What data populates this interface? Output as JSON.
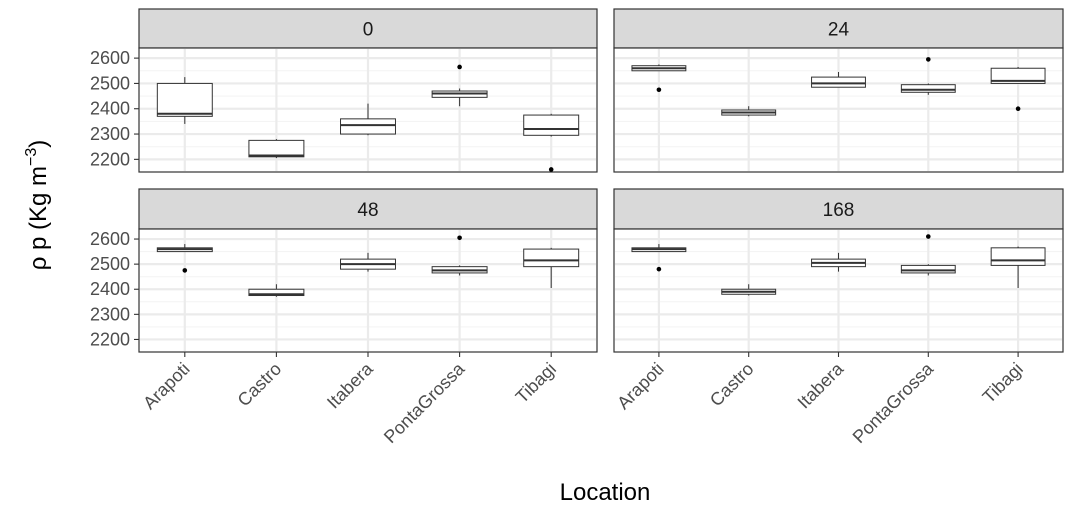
{
  "chart_data": {
    "type": "boxplot",
    "facet_variable": "time",
    "xlabel": "Location",
    "ylabel": "ρ p (Kg m",
    "ylabel_superscript": "−3",
    "ylabel_close": ")",
    "ylim": [
      2150,
      2640
    ],
    "yticks": [
      2200,
      2300,
      2400,
      2500,
      2600
    ],
    "grid": true,
    "categories": [
      "Arapoti",
      "Castro",
      "Itabera",
      "PontaGrossa",
      "Tibagi"
    ],
    "panels": [
      {
        "label": "0",
        "boxes": [
          {
            "category": "Arapoti",
            "lower": 2340,
            "q1": 2370,
            "median": 2380,
            "q3": 2500,
            "upper": 2525,
            "outliers": []
          },
          {
            "category": "Castro",
            "lower": 2205,
            "q1": 2210,
            "median": 2215,
            "q3": 2275,
            "upper": 2280,
            "outliers": []
          },
          {
            "category": "Itabera",
            "lower": 2295,
            "q1": 2300,
            "median": 2335,
            "q3": 2360,
            "upper": 2420,
            "outliers": []
          },
          {
            "category": "PontaGrossa",
            "lower": 2410,
            "q1": 2445,
            "median": 2460,
            "q3": 2470,
            "upper": 2480,
            "outliers": [
              2565
            ]
          },
          {
            "category": "Tibagi",
            "lower": 2290,
            "q1": 2295,
            "median": 2320,
            "q3": 2375,
            "upper": 2380,
            "outliers": [
              2160
            ]
          }
        ]
      },
      {
        "label": "24",
        "boxes": [
          {
            "category": "Arapoti",
            "lower": 2550,
            "q1": 2550,
            "median": 2560,
            "q3": 2570,
            "upper": 2575,
            "outliers": [
              2475
            ]
          },
          {
            "category": "Castro",
            "lower": 2370,
            "q1": 2375,
            "median": 2385,
            "q3": 2395,
            "upper": 2410,
            "outliers": []
          },
          {
            "category": "Itabera",
            "lower": 2485,
            "q1": 2485,
            "median": 2500,
            "q3": 2525,
            "upper": 2545,
            "outliers": []
          },
          {
            "category": "PontaGrossa",
            "lower": 2455,
            "q1": 2465,
            "median": 2475,
            "q3": 2495,
            "upper": 2500,
            "outliers": [
              2595
            ]
          },
          {
            "category": "Tibagi",
            "lower": 2500,
            "q1": 2500,
            "median": 2510,
            "q3": 2560,
            "upper": 2565,
            "outliers": [
              2400
            ]
          }
        ]
      },
      {
        "label": "48",
        "boxes": [
          {
            "category": "Arapoti",
            "lower": 2550,
            "q1": 2550,
            "median": 2560,
            "q3": 2565,
            "upper": 2580,
            "outliers": [
              2475
            ]
          },
          {
            "category": "Castro",
            "lower": 2370,
            "q1": 2375,
            "median": 2380,
            "q3": 2400,
            "upper": 2420,
            "outliers": []
          },
          {
            "category": "Itabera",
            "lower": 2470,
            "q1": 2480,
            "median": 2500,
            "q3": 2520,
            "upper": 2545,
            "outliers": []
          },
          {
            "category": "PontaGrossa",
            "lower": 2455,
            "q1": 2465,
            "median": 2475,
            "q3": 2490,
            "upper": 2495,
            "outliers": [
              2605
            ]
          },
          {
            "category": "Tibagi",
            "lower": 2405,
            "q1": 2490,
            "median": 2515,
            "q3": 2560,
            "upper": 2565,
            "outliers": []
          }
        ]
      },
      {
        "label": "168",
        "boxes": [
          {
            "category": "Arapoti",
            "lower": 2550,
            "q1": 2550,
            "median": 2560,
            "q3": 2565,
            "upper": 2580,
            "outliers": [
              2480
            ]
          },
          {
            "category": "Castro",
            "lower": 2375,
            "q1": 2380,
            "median": 2390,
            "q3": 2400,
            "upper": 2420,
            "outliers": []
          },
          {
            "category": "Itabera",
            "lower": 2470,
            "q1": 2490,
            "median": 2505,
            "q3": 2520,
            "upper": 2545,
            "outliers": []
          },
          {
            "category": "PontaGrossa",
            "lower": 2455,
            "q1": 2465,
            "median": 2475,
            "q3": 2495,
            "upper": 2500,
            "outliers": [
              2610
            ]
          },
          {
            "category": "Tibagi",
            "lower": 2405,
            "q1": 2495,
            "median": 2515,
            "q3": 2565,
            "upper": 2570,
            "outliers": []
          }
        ]
      }
    ]
  }
}
